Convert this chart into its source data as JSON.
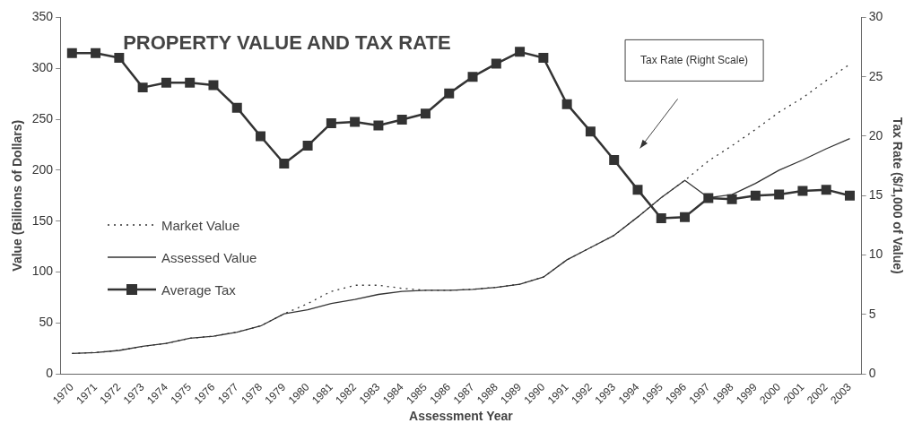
{
  "chart_data": {
    "type": "line",
    "title": "PROPERTY VALUE AND TAX RATE",
    "xlabel": "Assessment Year",
    "ylabel": "Value (Billions of Dollars)",
    "y2label": "Tax Rate ($/1,000 of Value)",
    "categories": [
      "1970",
      "1971",
      "1972",
      "1973",
      "1974",
      "1975",
      "1976",
      "1977",
      "1978",
      "1979",
      "1980",
      "1981",
      "1982",
      "1983",
      "1984",
      "1985",
      "1986",
      "1987",
      "1988",
      "1989",
      "1990",
      "1991",
      "1992",
      "1993",
      "1994",
      "1995",
      "1996",
      "1997",
      "1998",
      "1999",
      "2000",
      "2001",
      "2002",
      "2003"
    ],
    "series": [
      {
        "name": "Market Value",
        "color": "#333333",
        "line_style": "dotted",
        "marker": "none",
        "values": [
          20,
          21,
          23,
          27,
          30,
          35,
          37,
          41,
          47,
          59,
          69,
          81,
          87,
          87,
          84,
          82,
          82,
          83,
          85,
          88,
          95,
          112,
          124,
          136,
          154,
          173,
          190,
          209,
          224,
          240,
          257,
          271,
          288,
          304
        ]
      },
      {
        "name": "Assessed Value",
        "color": "#333333",
        "line_style": "solid",
        "marker": "none",
        "values": [
          20,
          21,
          23,
          27,
          30,
          35,
          37,
          41,
          47,
          59,
          63,
          69,
          73,
          78,
          81,
          82,
          82,
          83,
          85,
          88,
          95,
          112,
          124,
          136,
          154,
          173,
          190,
          173,
          176,
          187,
          200,
          210,
          221,
          231
        ]
      },
      {
        "name": "Average Tax",
        "color": "#333333",
        "line_style": "solid",
        "marker": "square",
        "axis": "y2",
        "values": [
          27.0,
          27.0,
          26.6,
          24.1,
          24.5,
          24.5,
          24.3,
          22.4,
          20.0,
          17.7,
          19.2,
          21.1,
          21.2,
          20.9,
          21.4,
          21.9,
          23.6,
          25.0,
          26.1,
          27.1,
          26.6,
          22.7,
          20.4,
          18.0,
          15.5,
          13.1,
          13.2,
          14.8,
          14.7,
          15.0,
          15.1,
          15.4,
          15.5,
          15.0
        ]
      }
    ],
    "ylim": [
      0,
      350
    ],
    "yticks": [
      0,
      50,
      100,
      150,
      200,
      250,
      300,
      350
    ],
    "y2lim": [
      0,
      30
    ],
    "y2ticks": [
      0,
      5,
      10,
      15,
      20,
      25,
      30
    ],
    "annotations": [
      "Tax Rate (Right Scale)"
    ],
    "legend": "left",
    "grid": false
  }
}
